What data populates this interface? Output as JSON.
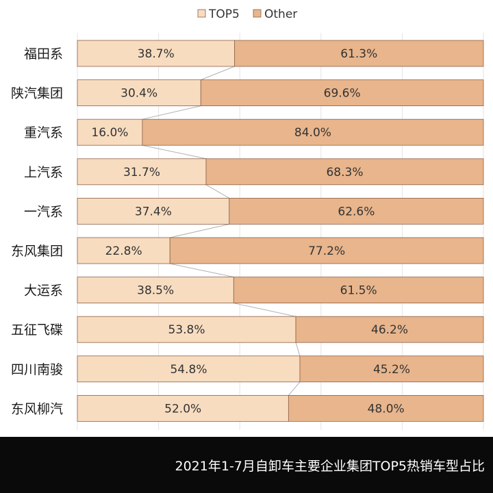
{
  "chart_data": {
    "type": "bar",
    "orientation": "horizontal",
    "stacked": "percent",
    "categories": [
      "福田系",
      "陕汽集团",
      "重汽系",
      "上汽系",
      "一汽系",
      "东风集团",
      "大运系",
      "五征飞碟",
      "四川南骏",
      "东风柳汽"
    ],
    "series": [
      {
        "name": "TOP5",
        "values": [
          38.7,
          30.4,
          16.0,
          31.7,
          37.4,
          22.8,
          38.5,
          53.8,
          54.8,
          52.0
        ],
        "labels": [
          "38.7%",
          "30.4%",
          "16.0%",
          "31.7%",
          "37.4%",
          "22.8%",
          "38.5%",
          "53.8%",
          "54.8%",
          "52.0%"
        ],
        "color": "#f7dcc0"
      },
      {
        "name": "Other",
        "values": [
          61.3,
          69.6,
          84.0,
          68.3,
          62.6,
          77.2,
          61.5,
          46.2,
          45.2,
          48.0
        ],
        "labels": [
          "61.3%",
          "69.6%",
          "84.0%",
          "68.3%",
          "62.6%",
          "77.2%",
          "61.5%",
          "46.2%",
          "45.2%",
          "48.0%"
        ],
        "color": "#e8b58c"
      }
    ],
    "xlim": [
      0,
      100
    ],
    "legend_position": "top",
    "series_lines": true,
    "grid": true
  },
  "footer": {
    "caption": "2021年1-7月自卸车主要企业集团TOP5热销车型占比"
  },
  "colors": {
    "top5": "#f7dcc0",
    "other": "#e8b58c",
    "bar_border": "#8c6048",
    "footer_bg": "#0a0a0a"
  }
}
